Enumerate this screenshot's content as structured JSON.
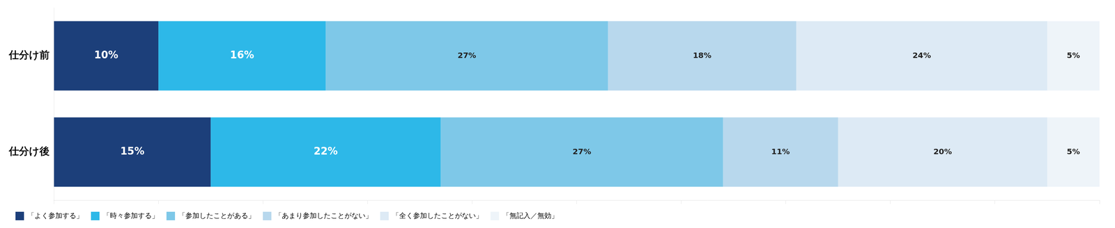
{
  "chart_data": {
    "type": "bar",
    "orientation": "horizontal",
    "stacked": true,
    "categories": [
      "仕分け前",
      "仕分け後"
    ],
    "series": [
      {
        "name": "「よく参加する」",
        "color": "#1c3f7a",
        "values": [
          10,
          15
        ],
        "value_labels": [
          "10%",
          "15%"
        ]
      },
      {
        "name": "「時々参加する」",
        "color": "#2db8e8",
        "values": [
          16,
          22
        ],
        "value_labels": [
          "16%",
          "22%"
        ]
      },
      {
        "name": "「参加したことがある」",
        "color": "#7ec8e8",
        "values": [
          27,
          27
        ],
        "value_labels": [
          "27%",
          "27%"
        ]
      },
      {
        "name": "「あまり参加したことがない」",
        "color": "#b8d8ed",
        "values": [
          18,
          11
        ],
        "value_labels": [
          "18%",
          "11%"
        ]
      },
      {
        "name": "「全く参加したことがない」",
        "color": "#ddeaf5",
        "values": [
          24,
          20
        ],
        "value_labels": [
          "24%",
          "20%"
        ]
      },
      {
        "name": "「無記入／無効」",
        "color": "#eef4f9",
        "values": [
          5,
          5
        ],
        "value_labels": [
          "5%",
          "5%"
        ]
      }
    ],
    "xlim": [
      0,
      100
    ],
    "xticks": [
      0,
      10,
      20,
      30,
      40,
      50,
      60,
      70,
      80,
      90,
      100
    ],
    "tick_labels": "y",
    "grid": false,
    "legend": "bottom",
    "data_labels": true
  }
}
